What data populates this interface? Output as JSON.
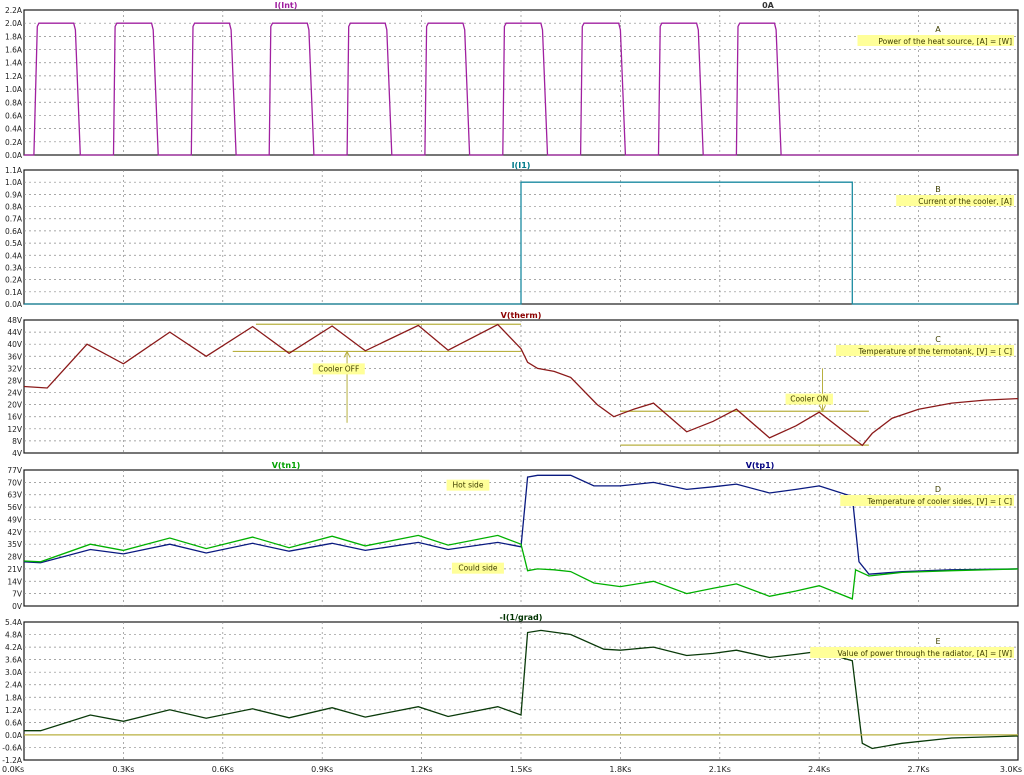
{
  "window": {
    "xticks": [
      "0.0Ks",
      "0.3Ks",
      "0.6Ks",
      "0.9Ks",
      "1.2Ks",
      "1.5Ks",
      "1.8Ks",
      "2.1Ks",
      "2.4Ks",
      "2.7Ks",
      "3.0Ks"
    ]
  },
  "colors": {
    "grid": "#8a8a8a",
    "frame": "#1a1a1a",
    "annot_bg": "#ffff99",
    "annot_text": "#404000",
    "olive": "#b8b040"
  },
  "chart_data": [
    {
      "type": "line",
      "id": "A",
      "title": "I(Int)",
      "title_color": "#a020a0",
      "title2": "0A",
      "title2_color": "#333333",
      "label_letter": "A",
      "annotation": "Power of the heat source, [A] = [W]",
      "ylim": [
        0,
        2.2
      ],
      "yticks": [
        "0.0A",
        "0.2A",
        "0.4A",
        "0.6A",
        "0.8A",
        "1.0A",
        "1.2A",
        "1.4A",
        "1.6A",
        "1.8A",
        "2.0A",
        "2.2A"
      ],
      "xlim": [
        0,
        3.0
      ],
      "series": [
        {
          "color": "#a020a0",
          "points": [
            [
              0,
              0
            ],
            [
              0.03,
              0
            ],
            [
              0.04,
              1.95
            ],
            [
              0.045,
              2.0
            ],
            [
              0.15,
              2.0
            ],
            [
              0.155,
              1.9
            ],
            [
              0.17,
              0
            ],
            [
              0.27,
              0
            ],
            [
              0.275,
              1.95
            ],
            [
              0.28,
              2.0
            ],
            [
              0.385,
              2.0
            ],
            [
              0.39,
              1.9
            ],
            [
              0.405,
              0
            ],
            [
              0.505,
              0
            ],
            [
              0.51,
              1.95
            ],
            [
              0.515,
              2.0
            ],
            [
              0.62,
              2.0
            ],
            [
              0.625,
              1.9
            ],
            [
              0.64,
              0
            ],
            [
              0.74,
              0
            ],
            [
              0.745,
              1.95
            ],
            [
              0.75,
              2.0
            ],
            [
              0.855,
              2.0
            ],
            [
              0.86,
              1.9
            ],
            [
              0.875,
              0
            ],
            [
              0.975,
              0
            ],
            [
              0.98,
              1.95
            ],
            [
              0.985,
              2.0
            ],
            [
              1.09,
              2.0
            ],
            [
              1.095,
              1.9
            ],
            [
              1.11,
              0
            ],
            [
              1.21,
              0
            ],
            [
              1.215,
              1.95
            ],
            [
              1.22,
              2.0
            ],
            [
              1.325,
              2.0
            ],
            [
              1.33,
              1.9
            ],
            [
              1.345,
              0
            ],
            [
              1.445,
              0
            ],
            [
              1.45,
              1.95
            ],
            [
              1.455,
              2.0
            ],
            [
              1.56,
              2.0
            ],
            [
              1.565,
              1.9
            ],
            [
              1.58,
              0
            ],
            [
              1.68,
              0
            ],
            [
              1.685,
              1.95
            ],
            [
              1.69,
              2.0
            ],
            [
              1.795,
              2.0
            ],
            [
              1.8,
              1.9
            ],
            [
              1.815,
              0
            ],
            [
              1.915,
              0
            ],
            [
              1.92,
              1.95
            ],
            [
              1.925,
              2.0
            ],
            [
              2.03,
              2.0
            ],
            [
              2.035,
              1.9
            ],
            [
              2.05,
              0
            ],
            [
              2.15,
              0
            ],
            [
              2.155,
              1.95
            ],
            [
              2.16,
              2.0
            ],
            [
              2.265,
              2.0
            ],
            [
              2.27,
              1.9
            ],
            [
              2.285,
              0
            ],
            [
              3.0,
              0
            ]
          ]
        }
      ]
    },
    {
      "type": "line",
      "id": "B",
      "title": "I(I1)",
      "title_color": "#007a8a",
      "label_letter": "B",
      "annotation": "Current of the cooler, [A]",
      "ylim": [
        0,
        1.1
      ],
      "yticks": [
        "0.0A",
        "0.1A",
        "0.2A",
        "0.3A",
        "0.4A",
        "0.5A",
        "0.6A",
        "0.7A",
        "0.8A",
        "0.9A",
        "1.0A",
        "1.1A"
      ],
      "xlim": [
        0,
        3.0
      ],
      "series": [
        {
          "color": "#1a8aa0",
          "points": [
            [
              0,
              0
            ],
            [
              1.5,
              0
            ],
            [
              1.5,
              1.0
            ],
            [
              2.5,
              1.0
            ],
            [
              2.5,
              0
            ],
            [
              3.0,
              0
            ]
          ]
        }
      ]
    },
    {
      "type": "line",
      "id": "C",
      "title": "V(therm)",
      "title_color": "#8b0000",
      "label_letter": "C",
      "annotation": "Temperature of the termotank, [V] = [ C]",
      "ylim": [
        4,
        48
      ],
      "yticks": [
        "4V",
        "8V",
        "12V",
        "16V",
        "20V",
        "24V",
        "28V",
        "32V",
        "36V",
        "40V",
        "44V",
        "48V"
      ],
      "xlim": [
        0,
        3.0
      ],
      "series": [
        {
          "color": "#8b1a1a",
          "points": [
            [
              0,
              26
            ],
            [
              0.07,
              25.5
            ],
            [
              0.19,
              40
            ],
            [
              0.3,
              33.5
            ],
            [
              0.44,
              44
            ],
            [
              0.55,
              36
            ],
            [
              0.69,
              45.8
            ],
            [
              0.8,
              37
            ],
            [
              0.93,
              46
            ],
            [
              1.03,
              37.8
            ],
            [
              1.19,
              46.2
            ],
            [
              1.28,
              38
            ],
            [
              1.43,
              46.5
            ],
            [
              1.5,
              38.5
            ],
            [
              1.52,
              34
            ],
            [
              1.55,
              32
            ],
            [
              1.6,
              31
            ],
            [
              1.65,
              29
            ],
            [
              1.73,
              20
            ],
            [
              1.78,
              16
            ],
            [
              1.84,
              18.5
            ],
            [
              1.9,
              20.5
            ],
            [
              2.0,
              11
            ],
            [
              2.08,
              14.5
            ],
            [
              2.15,
              18.5
            ],
            [
              2.25,
              9
            ],
            [
              2.33,
              13
            ],
            [
              2.4,
              17.5
            ],
            [
              2.5,
              9
            ],
            [
              2.53,
              6.5
            ],
            [
              2.56,
              10.5
            ],
            [
              2.62,
              15.5
            ],
            [
              2.7,
              18.5
            ],
            [
              2.8,
              20.5
            ],
            [
              2.9,
              21.5
            ],
            [
              3.0,
              22
            ]
          ]
        }
      ],
      "annotations": [
        {
          "text": "Cooler OFF",
          "x": 0.95,
          "y": 31
        },
        {
          "text": "Cooler ON",
          "x": 2.37,
          "y": 21
        }
      ]
    },
    {
      "type": "line",
      "id": "D",
      "title": "V(tn1)",
      "title_color": "#00a000",
      "title2": "V(tp1)",
      "title2_color": "#000080",
      "label_letter": "D",
      "annotation": "Temperature of cooler sides, [V] = [ C]",
      "ylim": [
        0,
        77
      ],
      "yticks": [
        "0V",
        "7V",
        "14V",
        "21V",
        "28V",
        "35V",
        "42V",
        "49V",
        "56V",
        "63V",
        "70V",
        "77V"
      ],
      "xlim": [
        0,
        3.0
      ],
      "series": [
        {
          "name": "V(tp1)",
          "color": "#0a1a80",
          "points": [
            [
              0,
              25
            ],
            [
              0.05,
              24.5
            ],
            [
              0.2,
              32
            ],
            [
              0.3,
              29.5
            ],
            [
              0.44,
              35
            ],
            [
              0.55,
              30
            ],
            [
              0.69,
              35.5
            ],
            [
              0.8,
              31
            ],
            [
              0.93,
              35.5
            ],
            [
              1.03,
              31.5
            ],
            [
              1.19,
              36
            ],
            [
              1.28,
              32
            ],
            [
              1.43,
              36
            ],
            [
              1.5,
              33.5
            ],
            [
              1.52,
              73
            ],
            [
              1.55,
              74
            ],
            [
              1.65,
              74
            ],
            [
              1.72,
              68
            ],
            [
              1.8,
              68
            ],
            [
              1.9,
              70
            ],
            [
              2.0,
              66
            ],
            [
              2.08,
              67.5
            ],
            [
              2.15,
              69
            ],
            [
              2.25,
              64
            ],
            [
              2.33,
              66
            ],
            [
              2.4,
              68
            ],
            [
              2.5,
              62
            ],
            [
              2.52,
              25
            ],
            [
              2.55,
              18
            ],
            [
              2.65,
              19.5
            ],
            [
              2.8,
              20.5
            ],
            [
              3.0,
              21
            ]
          ]
        },
        {
          "name": "V(tn1)",
          "color": "#00b000",
          "points": [
            [
              0,
              25.5
            ],
            [
              0.05,
              25
            ],
            [
              0.2,
              35
            ],
            [
              0.3,
              31.5
            ],
            [
              0.44,
              38.5
            ],
            [
              0.55,
              32.5
            ],
            [
              0.69,
              39
            ],
            [
              0.8,
              33
            ],
            [
              0.93,
              39.5
            ],
            [
              1.03,
              34
            ],
            [
              1.19,
              40
            ],
            [
              1.28,
              34.5
            ],
            [
              1.43,
              40
            ],
            [
              1.5,
              35
            ],
            [
              1.52,
              20
            ],
            [
              1.55,
              21
            ],
            [
              1.6,
              20.5
            ],
            [
              1.65,
              19.5
            ],
            [
              1.72,
              13
            ],
            [
              1.8,
              11
            ],
            [
              1.9,
              14
            ],
            [
              2.0,
              7
            ],
            [
              2.08,
              10
            ],
            [
              2.15,
              12.5
            ],
            [
              2.25,
              5.5
            ],
            [
              2.33,
              8.5
            ],
            [
              2.4,
              11.5
            ],
            [
              2.5,
              4
            ],
            [
              2.51,
              20.5
            ],
            [
              2.55,
              17
            ],
            [
              2.65,
              19
            ],
            [
              2.8,
              20
            ],
            [
              3.0,
              21
            ]
          ]
        }
      ],
      "annotations": [
        {
          "text": "Hot side",
          "x": 1.34,
          "y": 67
        },
        {
          "text": "Could side",
          "x": 1.37,
          "y": 20
        }
      ]
    },
    {
      "type": "line",
      "id": "E",
      "title": "-I(1/grad)",
      "title_color": "#003300",
      "label_letter": "E",
      "annotation": "Value of power through the radiator, [A] = [W]",
      "ylim": [
        -1.2,
        5.4
      ],
      "yticks": [
        "-1.2A",
        "-0.6A",
        "0.0A",
        "0.6A",
        "1.2A",
        "1.8A",
        "2.4A",
        "3.0A",
        "3.6A",
        "4.2A",
        "4.8A",
        "5.4A"
      ],
      "xlim": [
        0,
        3.0
      ],
      "series": [
        {
          "color": "#0a3a0a",
          "points": [
            [
              0,
              0.2
            ],
            [
              0.05,
              0.2
            ],
            [
              0.2,
              0.95
            ],
            [
              0.3,
              0.65
            ],
            [
              0.44,
              1.2
            ],
            [
              0.55,
              0.8
            ],
            [
              0.69,
              1.25
            ],
            [
              0.8,
              0.82
            ],
            [
              0.93,
              1.3
            ],
            [
              1.03,
              0.85
            ],
            [
              1.19,
              1.35
            ],
            [
              1.28,
              0.88
            ],
            [
              1.43,
              1.35
            ],
            [
              1.5,
              0.95
            ],
            [
              1.52,
              4.9
            ],
            [
              1.56,
              5.0
            ],
            [
              1.65,
              4.8
            ],
            [
              1.75,
              4.1
            ],
            [
              1.8,
              4.05
            ],
            [
              1.9,
              4.2
            ],
            [
              2.0,
              3.8
            ],
            [
              2.08,
              3.9
            ],
            [
              2.15,
              4.05
            ],
            [
              2.25,
              3.7
            ],
            [
              2.33,
              3.85
            ],
            [
              2.4,
              4.0
            ],
            [
              2.5,
              3.55
            ],
            [
              2.53,
              -0.4
            ],
            [
              2.56,
              -0.65
            ],
            [
              2.65,
              -0.4
            ],
            [
              2.8,
              -0.15
            ],
            [
              3.0,
              -0.05
            ]
          ]
        },
        {
          "color": "#b8b040",
          "points": [
            [
              0,
              0.0
            ],
            [
              3.0,
              0.0
            ]
          ]
        }
      ]
    }
  ]
}
